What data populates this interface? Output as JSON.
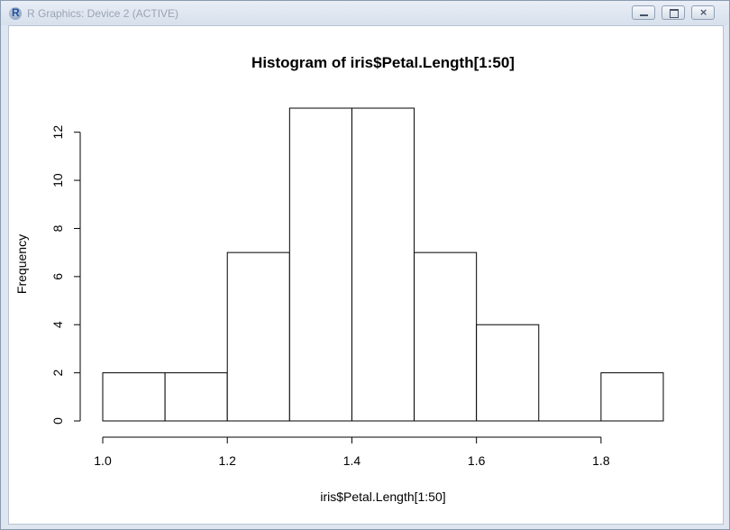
{
  "window": {
    "title": "R Graphics: Device 2 (ACTIVE)",
    "app_icon_letter": "R",
    "buttons": {
      "minimize": "minimize",
      "maximize": "maximize",
      "close": "×"
    }
  },
  "chart_data": {
    "type": "bar",
    "title": "Histogram of iris$Petal.Length[1:50]",
    "xlabel": "iris$Petal.Length[1:50]",
    "ylabel": "Frequency",
    "bins": [
      {
        "start": 1.0,
        "end": 1.1,
        "count": 2
      },
      {
        "start": 1.1,
        "end": 1.2,
        "count": 2
      },
      {
        "start": 1.2,
        "end": 1.3,
        "count": 7
      },
      {
        "start": 1.3,
        "end": 1.4,
        "count": 13
      },
      {
        "start": 1.4,
        "end": 1.5,
        "count": 13
      },
      {
        "start": 1.5,
        "end": 1.6,
        "count": 7
      },
      {
        "start": 1.6,
        "end": 1.7,
        "count": 4
      },
      {
        "start": 1.7,
        "end": 1.8,
        "count": 0
      },
      {
        "start": 1.8,
        "end": 1.9,
        "count": 2
      }
    ],
    "xticks": [
      "1.0",
      "1.2",
      "1.4",
      "1.6",
      "1.8"
    ],
    "xtick_values": [
      1.0,
      1.2,
      1.4,
      1.6,
      1.8
    ],
    "yticks": [
      "0",
      "2",
      "4",
      "6",
      "8",
      "10",
      "12"
    ],
    "ytick_values": [
      0,
      2,
      4,
      6,
      8,
      10,
      12
    ],
    "xlim": [
      1.0,
      1.9
    ],
    "ylim": [
      0,
      13
    ],
    "grid": false,
    "legend": "none"
  }
}
